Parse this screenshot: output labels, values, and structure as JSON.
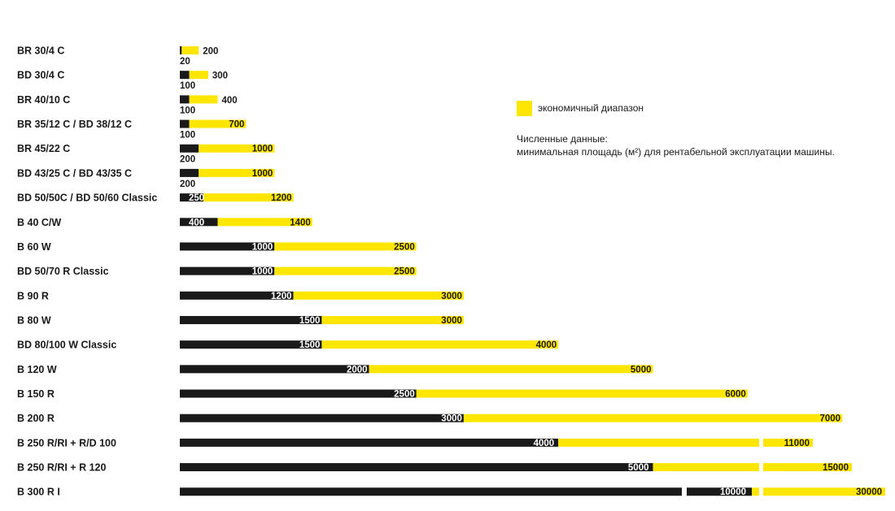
{
  "legend": {
    "label": "экономичный диапазон",
    "color": "#ffe600"
  },
  "note": {
    "line1": "Численные данные:",
    "line2": "минимальная площадь (м²) для рентабельной эксплуатации машины."
  },
  "colors": {
    "min": "#1a1a1a",
    "economic": "#ffe600"
  },
  "chart_data": {
    "type": "bar",
    "orientation": "horizontal",
    "series": [
      {
        "name": "min",
        "values": [
          20,
          100,
          100,
          100,
          200,
          200,
          250,
          400,
          1000,
          1000,
          1200,
          1500,
          1500,
          2000,
          2500,
          3000,
          4000,
          5000,
          10000
        ]
      },
      {
        "name": "экономичный диапазон",
        "values": [
          200,
          300,
          400,
          700,
          1000,
          1000,
          1200,
          1400,
          2500,
          2500,
          3000,
          3000,
          4000,
          5000,
          6000,
          7000,
          11000,
          15000,
          30000
        ]
      }
    ],
    "categories": [
      "BR 30/4 C",
      "BD 30/4 C",
      "BR 40/10 C",
      "BR 35/12 C / BD 38/12 C",
      "BR 45/22 C",
      "BD 43/25 C / BD 43/35 C",
      "BD 50/50C / BD 50/60 Classic",
      "B 40 C/W",
      "B 60 W",
      "BD 50/70 R Classic",
      "B 90 R",
      "B 80 W",
      "BD 80/100 W Classic",
      "B 120 W",
      "B 150 R",
      "B 200 R",
      "B 250 R/RI + R/D 100",
      "B 250 R/RI + R 120",
      "B 300 R I"
    ],
    "axis_breaks": [
      null,
      null,
      null,
      null,
      null,
      null,
      null,
      null,
      null,
      null,
      null,
      null,
      null,
      null,
      null,
      null,
      "max",
      "max",
      "both"
    ],
    "grid": false,
    "legend_position": "right"
  }
}
